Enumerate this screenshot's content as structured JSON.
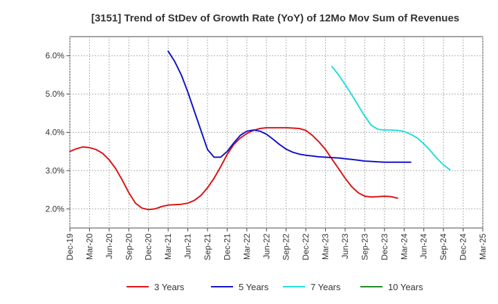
{
  "chart_data": {
    "type": "line",
    "title": "[3151]  Trend of StDev of Growth Rate (YoY) of 12Mo Mov Sum of Revenues",
    "xlabel": "",
    "ylabel": "",
    "ylim": [
      1.5,
      6.5
    ],
    "yticks": [
      2.0,
      3.0,
      4.0,
      5.0,
      6.0
    ],
    "ytick_labels": [
      "2.0%",
      "3.0%",
      "4.0%",
      "5.0%",
      "6.0%"
    ],
    "x_tick_labels": [
      "Dec-19",
      "Mar-20",
      "Jun-20",
      "Sep-20",
      "Dec-20",
      "Mar-21",
      "Jun-21",
      "Sep-21",
      "Dec-21",
      "Mar-22",
      "Jun-22",
      "Sep-22",
      "Dec-22",
      "Mar-23",
      "Jun-23",
      "Sep-23",
      "Dec-23",
      "Mar-24",
      "Jun-24",
      "Sep-24",
      "Dec-24",
      "Mar-25"
    ],
    "grid": true,
    "legend_position": "bottom",
    "series": [
      {
        "name": "3 Years",
        "color": "#dd1111",
        "start_index": 0,
        "values": [
          3.5,
          3.57,
          3.62,
          3.6,
          3.55,
          3.45,
          3.28,
          3.05,
          2.75,
          2.42,
          2.15,
          2.02,
          1.98,
          2.0,
          2.06,
          2.1,
          2.11,
          2.12,
          2.15,
          2.22,
          2.35,
          2.55,
          2.8,
          3.1,
          3.42,
          3.68,
          3.85,
          3.97,
          4.05,
          4.1,
          4.12,
          4.12,
          4.12,
          4.12,
          4.11,
          4.1,
          4.05,
          3.92,
          3.75,
          3.55,
          3.3,
          3.05,
          2.8,
          2.58,
          2.42,
          2.33,
          2.31,
          2.32,
          2.33,
          2.32,
          2.28
        ]
      },
      {
        "name": "5 Years",
        "color": "#1111cc",
        "start_index": 15,
        "values": [
          6.12,
          5.85,
          5.5,
          5.05,
          4.55,
          4.05,
          3.55,
          3.35,
          3.35,
          3.5,
          3.72,
          3.92,
          4.03,
          4.06,
          4.03,
          3.95,
          3.82,
          3.68,
          3.56,
          3.48,
          3.43,
          3.4,
          3.38,
          3.36,
          3.35,
          3.34,
          3.33,
          3.31,
          3.29,
          3.27,
          3.25,
          3.24,
          3.23,
          3.22,
          3.22,
          3.22,
          3.22,
          3.22
        ]
      },
      {
        "name": "7 Years",
        "color": "#22dddd",
        "start_index": 40,
        "values": [
          5.72,
          5.5,
          5.25,
          4.98,
          4.7,
          4.42,
          4.18,
          4.08,
          4.06,
          4.06,
          4.05,
          4.02,
          3.95,
          3.85,
          3.7,
          3.52,
          3.32,
          3.15,
          3.02
        ]
      },
      {
        "name": "10 Years",
        "color": "#228822",
        "start_index": 0,
        "values": []
      }
    ]
  }
}
